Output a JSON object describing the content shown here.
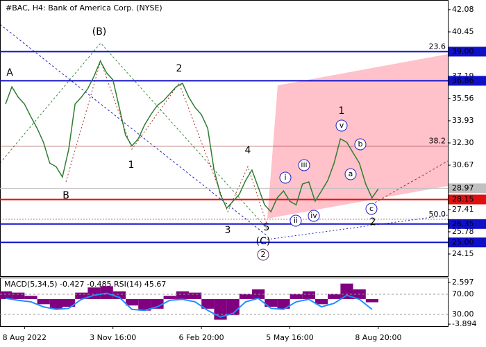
{
  "chart_data": {
    "type": "line",
    "title": "#BAC, H4:  Bank of America Corp. (NYSE)",
    "color": "#2e7d32",
    "categories": [
      null,
      null,
      null,
      "8 Aug 2022",
      null,
      null,
      null,
      null,
      null,
      null,
      null,
      null,
      null,
      null,
      null,
      null,
      null,
      "3 Nov 16:00",
      null,
      null,
      null,
      null,
      null,
      null,
      null,
      null,
      null,
      null,
      null,
      null,
      null,
      "6 Feb 20:00",
      null,
      null,
      null,
      null,
      null,
      null,
      null,
      null,
      null,
      null,
      null,
      null,
      null,
      "5 May 16:00",
      null,
      null,
      null,
      null,
      null,
      null,
      null,
      null,
      null,
      null,
      null,
      null,
      null,
      "8 Aug 20:00"
    ],
    "values": [
      35.15,
      36.42,
      35.66,
      35.15,
      34.23,
      33.37,
      32.35,
      30.82,
      30.56,
      29.8,
      31.84,
      35.15,
      35.66,
      36.27,
      37.19,
      38.31,
      37.44,
      36.93,
      34.9,
      32.86,
      32.09,
      32.6,
      33.62,
      34.38,
      35.05,
      35.4,
      35.91,
      36.42,
      36.68,
      35.66,
      34.9,
      34.38,
      33.37,
      30.31,
      28.53,
      27.51,
      28.02,
      28.53,
      29.55,
      30.31,
      29.04,
      27.76,
      27.25,
      28.27,
      28.78,
      28.02,
      27.76,
      29.29,
      29.44,
      28.02,
      28.78,
      29.55,
      30.82,
      32.6,
      32.35,
      31.58,
      30.82,
      29.29,
      28.27,
      28.93
    ],
    "ylim": [
      22.52,
      42.79
    ],
    "yticks": [
      24.15,
      25.78,
      27.41,
      30.67,
      {
        "value": 32.3,
        "label": "32.30"
      },
      33.93,
      35.56,
      37.19,
      40.45,
      42.08
    ],
    "levels": [
      {
        "value": 39.0,
        "label": "39.00",
        "color": "#1010c8"
      },
      {
        "value": 36.86,
        "color": "#1010c8"
      },
      {
        "value": 28.97,
        "color": "#c0c0c0"
      },
      {
        "value": 28.15,
        "color": "#e01010"
      },
      {
        "value": 26.35,
        "color": "#1010c8"
      },
      {
        "value": 25.0,
        "label": "25.00",
        "color": "#1010c8"
      }
    ],
    "fib_levels": [
      {
        "text": "23.6",
        "price": 39.0
      },
      {
        "text": "38.2",
        "price": 32.06
      },
      {
        "text": "50.0",
        "price": 26.7
      }
    ],
    "annotations": [
      {
        "text": "A",
        "color": "#a0302a"
      },
      {
        "text": "B",
        "color": "#a0302a"
      },
      {
        "text": "(B)",
        "color": "#3a8a3a"
      },
      {
        "text": "1",
        "color": "#a0302a"
      },
      {
        "text": "2",
        "color": "#a0302a"
      },
      {
        "text": "3",
        "color": "#a0302a"
      },
      {
        "text": "4",
        "color": "#a0302a"
      },
      {
        "text": "5",
        "color": "#a0302a"
      },
      {
        "text": "(C)",
        "color": "#3a8a3a"
      },
      {
        "text": "2",
        "color": "#6a2a6a"
      },
      {
        "text": "i",
        "color": "#2020c0"
      },
      {
        "text": "ii",
        "color": "#2020c0"
      },
      {
        "text": "iii",
        "color": "#2020c0"
      },
      {
        "text": "iv",
        "color": "#2020c0"
      },
      {
        "text": "1",
        "color": "#a0302a"
      },
      {
        "text": "v",
        "color": "#2020c0"
      },
      {
        "text": "b",
        "color": "#2020c0"
      },
      {
        "text": "a",
        "color": "#2020c0"
      },
      {
        "text": "c",
        "color": "#2020c0"
      },
      {
        "text": "2",
        "color": "#a0302a"
      }
    ],
    "indicator_title": "MACD(5,34,5) -0.427 -0.485 RSI(14) 45.67",
    "macd": [
      1.2,
      1.0,
      0.5,
      -0.8,
      -1.5,
      -1.2,
      1.0,
      1.8,
      2.0,
      1.2,
      -1.0,
      -1.8,
      -1.5,
      0.5,
      1.2,
      1.0,
      -1.5,
      -3.2,
      -2.5,
      0.8,
      1.5,
      -1.2,
      -1.5,
      0.8,
      1.2,
      -0.8,
      0.8,
      2.4,
      1.5,
      -0.5
    ],
    "macd_color": "#800080",
    "macd_lim": [
      -4.21,
      3.33
    ],
    "macd_ticks": [
      2.597,
      -3.894
    ],
    "rsi": [
      62,
      58,
      55,
      45,
      40,
      42,
      60,
      68,
      72,
      64,
      40,
      38,
      45,
      58,
      60,
      55,
      38,
      25,
      32,
      55,
      62,
      42,
      40,
      55,
      60,
      45,
      52,
      68,
      60,
      40
    ],
    "rsi_color": "#1e90ff",
    "rsi_lim": [
      6.6,
      103.1
    ],
    "rsi_ticks": [
      {
        "value": 70,
        "label": "70.00"
      },
      {
        "value": 30,
        "label": "30.00"
      }
    ]
  }
}
